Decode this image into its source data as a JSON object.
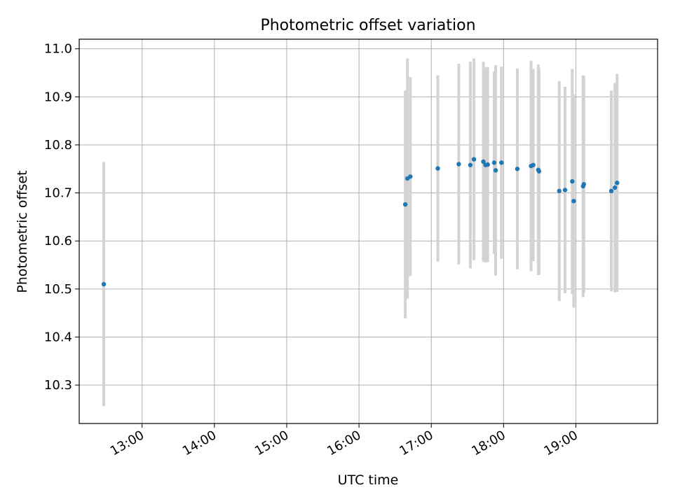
{
  "chart_data": {
    "type": "scatter",
    "title": "Photometric offset variation",
    "xlabel": "UTC time",
    "ylabel": "Photometric offset",
    "x_tick_labels": [
      "13:00",
      "14:00",
      "15:00",
      "16:00",
      "17:00",
      "18:00",
      "19:00"
    ],
    "x_tick_values": [
      13,
      14,
      15,
      16,
      17,
      18,
      19
    ],
    "y_tick_labels": [
      "10.3",
      "10.4",
      "10.5",
      "10.6",
      "10.7",
      "10.8",
      "10.9",
      "11.0"
    ],
    "y_tick_values": [
      10.3,
      10.4,
      10.5,
      10.6,
      10.7,
      10.8,
      10.9,
      11.0
    ],
    "xlim": [
      12.13,
      20.13
    ],
    "ylim": [
      10.22,
      11.02
    ],
    "grid": true,
    "colors": {
      "points": "#1f77b4",
      "error_bars": "#d3d3d3",
      "grid": "#b0b0b0"
    },
    "points": [
      {
        "x": 12.47,
        "y": 10.51,
        "err": 0.254
      },
      {
        "x": 16.64,
        "y": 10.676,
        "err": 0.237
      },
      {
        "x": 16.67,
        "y": 10.73,
        "err": 0.25
      },
      {
        "x": 16.71,
        "y": 10.734,
        "err": 0.207
      },
      {
        "x": 17.09,
        "y": 10.751,
        "err": 0.194
      },
      {
        "x": 17.38,
        "y": 10.76,
        "err": 0.209
      },
      {
        "x": 17.54,
        "y": 10.758,
        "err": 0.215
      },
      {
        "x": 17.59,
        "y": 10.77,
        "err": 0.21
      },
      {
        "x": 17.72,
        "y": 10.765,
        "err": 0.208
      },
      {
        "x": 17.75,
        "y": 10.758,
        "err": 0.203
      },
      {
        "x": 17.78,
        "y": 10.759,
        "err": 0.203
      },
      {
        "x": 17.87,
        "y": 10.763,
        "err": 0.19
      },
      {
        "x": 17.89,
        "y": 10.747,
        "err": 0.219
      },
      {
        "x": 17.97,
        "y": 10.763,
        "err": 0.2
      },
      {
        "x": 18.19,
        "y": 10.75,
        "err": 0.209
      },
      {
        "x": 18.38,
        "y": 10.756,
        "err": 0.219
      },
      {
        "x": 18.41,
        "y": 10.758,
        "err": 0.2
      },
      {
        "x": 18.48,
        "y": 10.748,
        "err": 0.219
      },
      {
        "x": 18.49,
        "y": 10.745,
        "err": 0.215
      },
      {
        "x": 18.77,
        "y": 10.704,
        "err": 0.229
      },
      {
        "x": 18.85,
        "y": 10.706,
        "err": 0.215
      },
      {
        "x": 18.95,
        "y": 10.724,
        "err": 0.234
      },
      {
        "x": 18.97,
        "y": 10.683,
        "err": 0.222
      },
      {
        "x": 19.1,
        "y": 10.714,
        "err": 0.231
      },
      {
        "x": 19.11,
        "y": 10.718,
        "err": 0.225
      },
      {
        "x": 19.49,
        "y": 10.704,
        "err": 0.209
      },
      {
        "x": 19.54,
        "y": 10.711,
        "err": 0.218
      },
      {
        "x": 19.57,
        "y": 10.721,
        "err": 0.227
      }
    ]
  }
}
